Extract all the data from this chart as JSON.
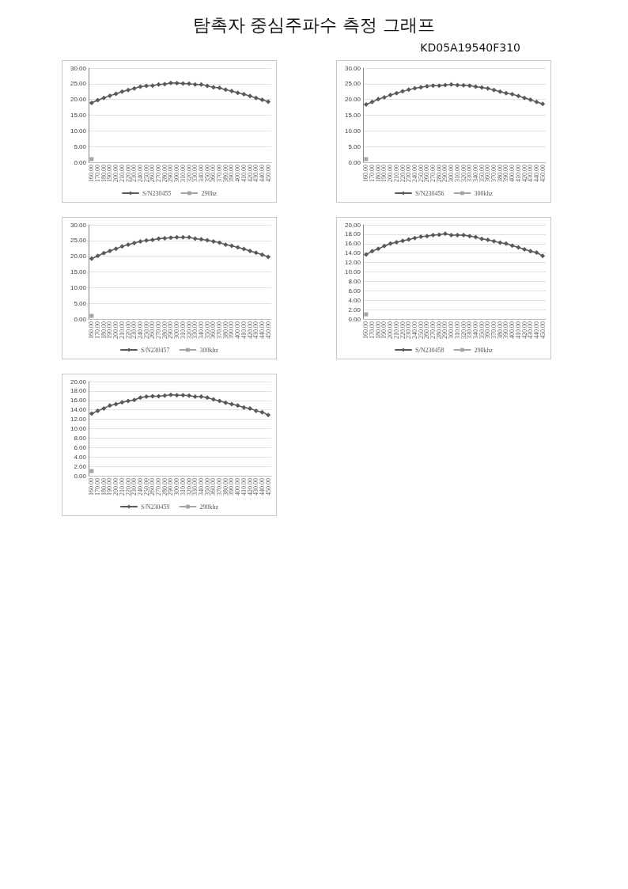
{
  "chart_data": [
    {
      "type": "line",
      "title": "탐촉자 중심주파수 측정 그래프",
      "categories": [
        "160.00",
        "170.00",
        "180.00",
        "190.00",
        "200.00",
        "210.00",
        "220.00",
        "230.00",
        "240.00",
        "250.00",
        "260.00",
        "270.00",
        "280.00",
        "290.00",
        "300.00",
        "310.00",
        "320.00",
        "330.00",
        "340.00",
        "350.00",
        "360.00",
        "370.00",
        "380.00",
        "390.00",
        "400.00",
        "410.00",
        "420.00",
        "430.00",
        "440.00",
        "450.00"
      ],
      "series": [
        {
          "name": "S/N230455",
          "color": "#595959",
          "values": [
            18.9,
            19.8,
            20.5,
            21.2,
            21.8,
            22.5,
            23.0,
            23.5,
            24.1,
            24.3,
            24.4,
            24.8,
            24.9,
            25.3,
            25.2,
            25.1,
            25.0,
            24.8,
            24.8,
            24.3,
            23.9,
            23.7,
            23.1,
            22.7,
            22.1,
            21.7,
            21.1,
            20.5,
            19.9,
            19.3
          ]
        },
        {
          "name": "290hz",
          "color": "#a5a5a5",
          "marker": "square",
          "values": [
            1,
            null,
            null,
            null,
            null,
            null,
            null,
            null,
            null,
            null,
            null,
            null,
            null,
            null,
            null,
            null,
            null,
            null,
            null,
            null,
            null,
            null,
            null,
            null,
            null,
            null,
            null,
            null,
            null,
            null
          ]
        }
      ],
      "ylim": [
        0,
        30
      ],
      "yticks": [
        {
          "value": 0,
          "label": "0.00"
        },
        {
          "value": 5,
          "label": "5.00"
        },
        {
          "value": 10,
          "label": "10.00"
        },
        {
          "value": 15,
          "label": "15.00"
        },
        {
          "value": 20,
          "label": "20.00"
        },
        {
          "value": 25,
          "label": "25.00"
        },
        {
          "value": 30,
          "label": "30.00"
        }
      ],
      "grid": "y",
      "legend": "bottom",
      "marker": "diamond",
      "line_style": "solid"
    },
    {
      "type": "line",
      "subtitle": "KD05A19540F310",
      "categories": [
        "160.00",
        "170.00",
        "180.00",
        "190.00",
        "200.00",
        "210.00",
        "220.00",
        "230.00",
        "240.00",
        "250.00",
        "260.00",
        "270.00",
        "280.00",
        "290.00",
        "300.00",
        "310.00",
        "320.00",
        "330.00",
        "340.00",
        "350.00",
        "360.00",
        "370.00",
        "380.00",
        "390.00",
        "400.00",
        "410.00",
        "420.00",
        "430.00",
        "440.00",
        "450.00"
      ],
      "series": [
        {
          "name": "S/N230456",
          "color": "#595959",
          "values": [
            18.4,
            19.2,
            20.1,
            20.7,
            21.4,
            22.0,
            22.6,
            23.1,
            23.6,
            23.9,
            24.2,
            24.4,
            24.4,
            24.6,
            24.8,
            24.6,
            24.5,
            24.4,
            24.1,
            23.8,
            23.5,
            23.0,
            22.5,
            22.0,
            21.7,
            21.1,
            20.5,
            19.9,
            19.2,
            18.6
          ]
        },
        {
          "name": "300khz",
          "color": "#a5a5a5",
          "marker": "square",
          "values": [
            1,
            null,
            null,
            null,
            null,
            null,
            null,
            null,
            null,
            null,
            null,
            null,
            null,
            null,
            null,
            null,
            null,
            null,
            null,
            null,
            null,
            null,
            null,
            null,
            null,
            null,
            null,
            null,
            null,
            null
          ]
        }
      ],
      "ylim": [
        0,
        30
      ],
      "yticks": [
        {
          "value": 0,
          "label": "0.00"
        },
        {
          "value": 5,
          "label": "5.00"
        },
        {
          "value": 10,
          "label": "10.00"
        },
        {
          "value": 15,
          "label": "15.00"
        },
        {
          "value": 20,
          "label": "20.00"
        },
        {
          "value": 25,
          "label": "25.00"
        },
        {
          "value": 30,
          "label": "30.00"
        }
      ],
      "grid": "y",
      "legend": "bottom",
      "marker": "diamond",
      "line_style": "solid"
    },
    {
      "type": "line",
      "categories": [
        "160.00",
        "170.00",
        "180.00",
        "190.00",
        "200.00",
        "210.00",
        "220.00",
        "230.00",
        "240.00",
        "250.00",
        "260.00",
        "270.00",
        "280.00",
        "290.00",
        "300.00",
        "310.00",
        "320.00",
        "330.00",
        "340.00",
        "350.00",
        "360.00",
        "370.00",
        "380.00",
        "390.00",
        "400.00",
        "410.00",
        "420.00",
        "430.00",
        "440.00",
        "450.00"
      ],
      "series": [
        {
          "name": "S/N230457",
          "color": "#595959",
          "values": [
            19.2,
            20.1,
            21.0,
            21.7,
            22.4,
            23.1,
            23.7,
            24.2,
            24.7,
            25.0,
            25.2,
            25.6,
            25.7,
            25.9,
            26.0,
            26.0,
            26.0,
            25.6,
            25.4,
            25.1,
            24.7,
            24.3,
            23.7,
            23.3,
            22.8,
            22.3,
            21.7,
            21.1,
            20.5,
            19.8
          ]
        },
        {
          "name": "300khz",
          "color": "#a5a5a5",
          "marker": "square",
          "values": [
            1,
            null,
            null,
            null,
            null,
            null,
            null,
            null,
            null,
            null,
            null,
            null,
            null,
            null,
            null,
            null,
            null,
            null,
            null,
            null,
            null,
            null,
            null,
            null,
            null,
            null,
            null,
            null,
            null,
            null
          ]
        }
      ],
      "ylim": [
        0,
        30
      ],
      "yticks": [
        {
          "value": 0,
          "label": "0.00"
        },
        {
          "value": 5,
          "label": "5.00"
        },
        {
          "value": 10,
          "label": "10.00"
        },
        {
          "value": 15,
          "label": "15.00"
        },
        {
          "value": 20,
          "label": "20.00"
        },
        {
          "value": 25,
          "label": "25.00"
        },
        {
          "value": 30,
          "label": "30.00"
        }
      ],
      "grid": "y",
      "legend": "bottom",
      "marker": "diamond",
      "line_style": "solid"
    },
    {
      "type": "line",
      "categories": [
        "160.00",
        "170.00",
        "180.00",
        "190.00",
        "200.00",
        "210.00",
        "220.00",
        "230.00",
        "240.00",
        "250.00",
        "260.00",
        "270.00",
        "280.00",
        "290.00",
        "300.00",
        "310.00",
        "320.00",
        "330.00",
        "340.00",
        "350.00",
        "360.00",
        "370.00",
        "380.00",
        "390.00",
        "400.00",
        "410.00",
        "420.00",
        "430.00",
        "440.00",
        "450.00"
      ],
      "series": [
        {
          "name": "S/N230458",
          "color": "#595959",
          "values": [
            13.7,
            14.4,
            14.9,
            15.5,
            16.0,
            16.3,
            16.6,
            16.9,
            17.2,
            17.5,
            17.6,
            17.8,
            17.9,
            18.1,
            17.8,
            17.8,
            17.8,
            17.6,
            17.4,
            17.0,
            16.8,
            16.5,
            16.2,
            16.0,
            15.6,
            15.2,
            14.8,
            14.4,
            14.1,
            13.4
          ]
        },
        {
          "name": "290khz",
          "color": "#a5a5a5",
          "marker": "square",
          "values": [
            1,
            null,
            null,
            null,
            null,
            null,
            null,
            null,
            null,
            null,
            null,
            null,
            null,
            null,
            null,
            null,
            null,
            null,
            null,
            null,
            null,
            null,
            null,
            null,
            null,
            null,
            null,
            null,
            null,
            null
          ]
        }
      ],
      "ylim": [
        0,
        20
      ],
      "yticks": [
        {
          "value": 0,
          "label": "0.00"
        },
        {
          "value": 2,
          "label": "2.00"
        },
        {
          "value": 4,
          "label": "4.00"
        },
        {
          "value": 6,
          "label": "6.00"
        },
        {
          "value": 8,
          "label": "8.00"
        },
        {
          "value": 10,
          "label": "10.00"
        },
        {
          "value": 12,
          "label": "12.00"
        },
        {
          "value": 14,
          "label": "14.00"
        },
        {
          "value": 16,
          "label": "16.00"
        },
        {
          "value": 18,
          "label": "18.00"
        },
        {
          "value": 20,
          "label": "20.00"
        }
      ],
      "grid": "y",
      "legend": "bottom",
      "marker": "diamond",
      "line_style": "solid"
    },
    {
      "type": "line",
      "categories": [
        "160.00",
        "170.00",
        "180.00",
        "190.00",
        "200.00",
        "210.00",
        "220.00",
        "230.00",
        "240.00",
        "250.00",
        "260.00",
        "270.00",
        "280.00",
        "290.00",
        "300.00",
        "310.00",
        "320.00",
        "330.00",
        "340.00",
        "350.00",
        "360.00",
        "370.00",
        "380.00",
        "390.00",
        "400.00",
        "410.00",
        "420.00",
        "430.00",
        "440.00",
        "450.00"
      ],
      "series": [
        {
          "name": "S/N230459",
          "color": "#595959",
          "values": [
            13.2,
            13.8,
            14.3,
            14.9,
            15.2,
            15.6,
            15.9,
            16.1,
            16.6,
            16.8,
            16.9,
            16.9,
            17.0,
            17.2,
            17.1,
            17.1,
            17.0,
            16.8,
            16.8,
            16.6,
            16.2,
            15.9,
            15.5,
            15.2,
            14.9,
            14.5,
            14.3,
            13.8,
            13.5,
            12.9
          ]
        },
        {
          "name": "290khz",
          "color": "#a5a5a5",
          "marker": "square",
          "values": [
            1,
            null,
            null,
            null,
            null,
            null,
            null,
            null,
            null,
            null,
            null,
            null,
            null,
            null,
            null,
            null,
            null,
            null,
            null,
            null,
            null,
            null,
            null,
            null,
            null,
            null,
            null,
            null,
            null,
            null
          ]
        }
      ],
      "ylim": [
        0,
        20
      ],
      "yticks": [
        {
          "value": 0,
          "label": "0.00"
        },
        {
          "value": 2,
          "label": "2.00"
        },
        {
          "value": 4,
          "label": "4.00"
        },
        {
          "value": 6,
          "label": "6.00"
        },
        {
          "value": 8,
          "label": "8.00"
        },
        {
          "value": 10,
          "label": "10.00"
        },
        {
          "value": 12,
          "label": "12.00"
        },
        {
          "value": 14,
          "label": "14.00"
        },
        {
          "value": 16,
          "label": "16.00"
        },
        {
          "value": 18,
          "label": "18.00"
        },
        {
          "value": 20,
          "label": "20.00"
        }
      ],
      "grid": "y",
      "legend": "bottom",
      "marker": "diamond",
      "line_style": "solid"
    }
  ]
}
